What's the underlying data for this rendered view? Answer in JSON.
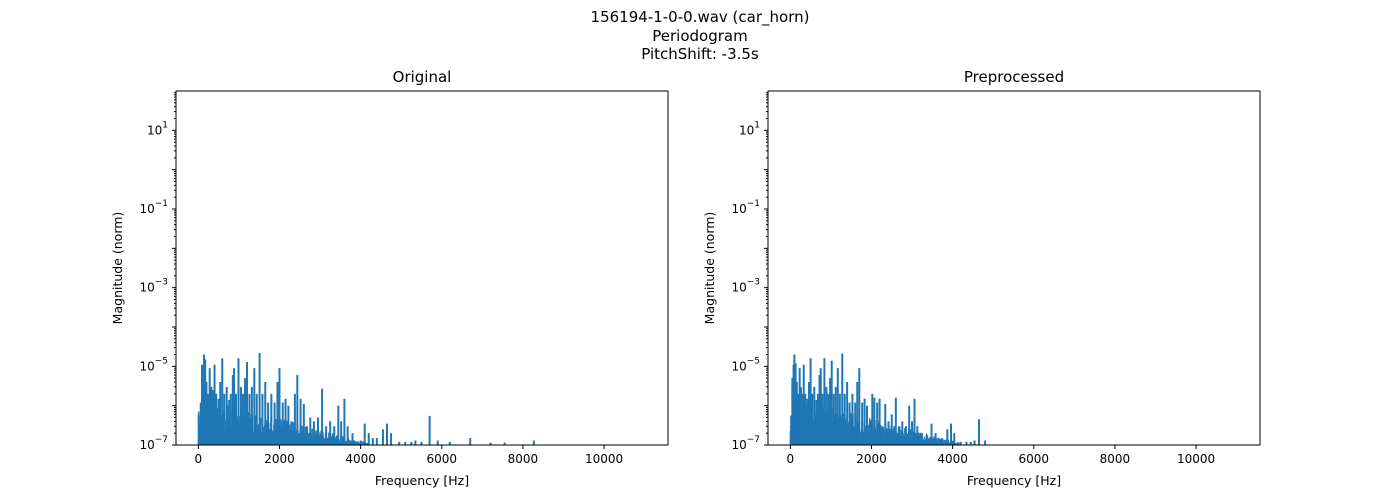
{
  "figure": {
    "title_lines": [
      "156194-1-0-0.wav (car_horn)",
      "Periodogram",
      "PitchShift: -3.5s"
    ],
    "series_color": "#1f77b4"
  },
  "chart_data": [
    {
      "type": "area",
      "title": "Original",
      "xlabel": "Frequency [Hz]",
      "ylabel": "Magnitude (norm)",
      "xlim": [
        -550,
        11575
      ],
      "ylim_exponents": [
        -7,
        2
      ],
      "yscale": "log",
      "xticks": [
        0,
        2000,
        4000,
        6000,
        8000,
        10000
      ],
      "xtick_labels": [
        "0",
        "2000",
        "4000",
        "6000",
        "8000",
        "10000"
      ],
      "yticks": [
        1e-07,
        1e-05,
        0.001,
        0.1,
        10
      ],
      "ytick_labels": [
        {
          "base": "10",
          "exp": "−7"
        },
        {
          "base": "10",
          "exp": "−5"
        },
        {
          "base": "10",
          "exp": "−3"
        },
        {
          "base": "10",
          "exp": "−1"
        },
        {
          "base": "10",
          "exp": "1"
        }
      ],
      "floor_level": 1e-07,
      "peaks": [
        {
          "x": 30,
          "y": 3e-07
        },
        {
          "x": 60,
          "y": 1.2e-06
        },
        {
          "x": 90,
          "y": 1.1e-05
        },
        {
          "x": 110,
          "y": 3e-06
        },
        {
          "x": 140,
          "y": 2e-05
        },
        {
          "x": 170,
          "y": 1.5e-05
        },
        {
          "x": 200,
          "y": 4e-06
        },
        {
          "x": 240,
          "y": 2e-06
        },
        {
          "x": 280,
          "y": 9e-06
        },
        {
          "x": 320,
          "y": 3e-06
        },
        {
          "x": 360,
          "y": 2.5e-06
        },
        {
          "x": 400,
          "y": 1.1e-05
        },
        {
          "x": 440,
          "y": 2e-06
        },
        {
          "x": 500,
          "y": 1.5e-06
        },
        {
          "x": 540,
          "y": 4e-06
        },
        {
          "x": 590,
          "y": 1.6e-05
        },
        {
          "x": 640,
          "y": 2e-06
        },
        {
          "x": 700,
          "y": 3e-06
        },
        {
          "x": 760,
          "y": 1.4e-06
        },
        {
          "x": 800,
          "y": 2e-06
        },
        {
          "x": 850,
          "y": 6e-06
        },
        {
          "x": 880,
          "y": 9e-06
        },
        {
          "x": 930,
          "y": 2e-06
        },
        {
          "x": 990,
          "y": 1.6e-05
        },
        {
          "x": 1050,
          "y": 3e-06
        },
        {
          "x": 1100,
          "y": 2e-06
        },
        {
          "x": 1150,
          "y": 5e-06
        },
        {
          "x": 1200,
          "y": 1.3e-05
        },
        {
          "x": 1260,
          "y": 2e-06
        },
        {
          "x": 1320,
          "y": 3e-06
        },
        {
          "x": 1380,
          "y": 9e-06
        },
        {
          "x": 1440,
          "y": 2e-06
        },
        {
          "x": 1510,
          "y": 2.2e-05
        },
        {
          "x": 1580,
          "y": 2e-06
        },
        {
          "x": 1650,
          "y": 4e-06
        },
        {
          "x": 1720,
          "y": 1.2e-06
        },
        {
          "x": 1800,
          "y": 2e-06
        },
        {
          "x": 1880,
          "y": 1.2e-06
        },
        {
          "x": 1950,
          "y": 4e-06
        },
        {
          "x": 2000,
          "y": 9e-06
        },
        {
          "x": 2080,
          "y": 1.2e-06
        },
        {
          "x": 2150,
          "y": 1.5e-06
        },
        {
          "x": 2220,
          "y": 1e-06
        },
        {
          "x": 2300,
          "y": 4e-07
        },
        {
          "x": 2380,
          "y": 2e-06
        },
        {
          "x": 2440,
          "y": 6e-06
        },
        {
          "x": 2520,
          "y": 1.5e-06
        },
        {
          "x": 2600,
          "y": 1.1e-06
        },
        {
          "x": 2680,
          "y": 3e-07
        },
        {
          "x": 2760,
          "y": 5e-07
        },
        {
          "x": 2850,
          "y": 4e-07
        },
        {
          "x": 2950,
          "y": 5e-07
        },
        {
          "x": 3050,
          "y": 2.7e-06
        },
        {
          "x": 3150,
          "y": 3e-07
        },
        {
          "x": 3250,
          "y": 4e-07
        },
        {
          "x": 3350,
          "y": 3e-07
        },
        {
          "x": 3450,
          "y": 1e-06
        },
        {
          "x": 3520,
          "y": 4e-07
        },
        {
          "x": 3600,
          "y": 1.5e-06
        },
        {
          "x": 3680,
          "y": 3e-07
        },
        {
          "x": 3800,
          "y": 2e-07
        },
        {
          "x": 4000,
          "y": 1.3e-07
        },
        {
          "x": 4100,
          "y": 3.5e-07
        },
        {
          "x": 4200,
          "y": 2e-07
        },
        {
          "x": 4300,
          "y": 1.5e-07
        },
        {
          "x": 4400,
          "y": 1.5e-07
        },
        {
          "x": 4550,
          "y": 2.5e-07
        },
        {
          "x": 4650,
          "y": 3.5e-07
        },
        {
          "x": 4750,
          "y": 2e-07
        },
        {
          "x": 4950,
          "y": 1.2e-07
        },
        {
          "x": 5100,
          "y": 1.2e-07
        },
        {
          "x": 5250,
          "y": 1.2e-07
        },
        {
          "x": 5350,
          "y": 1.3e-07
        },
        {
          "x": 5500,
          "y": 1.2e-07
        },
        {
          "x": 5700,
          "y": 5.5e-07
        },
        {
          "x": 5900,
          "y": 1.3e-07
        },
        {
          "x": 6200,
          "y": 1.2e-07
        },
        {
          "x": 6700,
          "y": 1.5e-07
        },
        {
          "x": 7200,
          "y": 1.15e-07
        },
        {
          "x": 7550,
          "y": 1.15e-07
        },
        {
          "x": 8270,
          "y": 1.3e-07
        }
      ]
    },
    {
      "type": "area",
      "title": "Preprocessed",
      "xlabel": "Frequency [Hz]",
      "ylabel": "Magnitude (norm)",
      "xlim": [
        -550,
        11575
      ],
      "ylim_exponents": [
        -7,
        2
      ],
      "yscale": "log",
      "xticks": [
        0,
        2000,
        4000,
        6000,
        8000,
        10000
      ],
      "xtick_labels": [
        "0",
        "2000",
        "4000",
        "6000",
        "8000",
        "10000"
      ],
      "yticks": [
        1e-07,
        1e-05,
        0.001,
        0.1,
        10
      ],
      "ytick_labels": [
        {
          "base": "10",
          "exp": "−7"
        },
        {
          "base": "10",
          "exp": "−5"
        },
        {
          "base": "10",
          "exp": "−3"
        },
        {
          "base": "10",
          "exp": "−1"
        },
        {
          "base": "10",
          "exp": "1"
        }
      ],
      "floor_level": 1e-07,
      "peaks": [
        {
          "x": 20,
          "y": 3e-07
        },
        {
          "x": 50,
          "y": 5e-06
        },
        {
          "x": 80,
          "y": 1.1e-05
        },
        {
          "x": 100,
          "y": 2e-05
        },
        {
          "x": 130,
          "y": 1.2e-05
        },
        {
          "x": 160,
          "y": 4e-06
        },
        {
          "x": 190,
          "y": 2e-06
        },
        {
          "x": 230,
          "y": 9e-06
        },
        {
          "x": 260,
          "y": 3e-06
        },
        {
          "x": 300,
          "y": 2e-06
        },
        {
          "x": 330,
          "y": 1.1e-05
        },
        {
          "x": 370,
          "y": 2e-06
        },
        {
          "x": 420,
          "y": 1.5e-06
        },
        {
          "x": 460,
          "y": 4e-06
        },
        {
          "x": 500,
          "y": 1.6e-05
        },
        {
          "x": 540,
          "y": 2e-06
        },
        {
          "x": 590,
          "y": 3e-06
        },
        {
          "x": 640,
          "y": 1.4e-06
        },
        {
          "x": 680,
          "y": 2e-06
        },
        {
          "x": 720,
          "y": 6e-06
        },
        {
          "x": 750,
          "y": 9e-06
        },
        {
          "x": 790,
          "y": 2e-06
        },
        {
          "x": 840,
          "y": 1.6e-05
        },
        {
          "x": 890,
          "y": 3e-06
        },
        {
          "x": 940,
          "y": 2e-06
        },
        {
          "x": 980,
          "y": 5e-06
        },
        {
          "x": 1020,
          "y": 1.4e-05
        },
        {
          "x": 1070,
          "y": 2e-06
        },
        {
          "x": 1120,
          "y": 3e-06
        },
        {
          "x": 1170,
          "y": 9e-06
        },
        {
          "x": 1220,
          "y": 2e-06
        },
        {
          "x": 1280,
          "y": 2.1e-05
        },
        {
          "x": 1340,
          "y": 2e-06
        },
        {
          "x": 1400,
          "y": 4e-06
        },
        {
          "x": 1460,
          "y": 1.2e-06
        },
        {
          "x": 1530,
          "y": 2e-06
        },
        {
          "x": 1600,
          "y": 1.2e-06
        },
        {
          "x": 1650,
          "y": 4e-06
        },
        {
          "x": 1700,
          "y": 9e-06
        },
        {
          "x": 1770,
          "y": 1.2e-06
        },
        {
          "x": 1830,
          "y": 1.5e-06
        },
        {
          "x": 1890,
          "y": 1e-06
        },
        {
          "x": 1960,
          "y": 4e-07
        },
        {
          "x": 2020,
          "y": 2e-06
        },
        {
          "x": 2070,
          "y": 1.6e-06
        },
        {
          "x": 2140,
          "y": 1.2e-06
        },
        {
          "x": 2200,
          "y": 1.5e-06
        },
        {
          "x": 2280,
          "y": 3e-07
        },
        {
          "x": 2340,
          "y": 1.1e-06
        },
        {
          "x": 2420,
          "y": 4e-07
        },
        {
          "x": 2500,
          "y": 6e-07
        },
        {
          "x": 2600,
          "y": 1.6e-06
        },
        {
          "x": 2680,
          "y": 3e-07
        },
        {
          "x": 2760,
          "y": 4e-07
        },
        {
          "x": 2850,
          "y": 3e-07
        },
        {
          "x": 2930,
          "y": 1e-06
        },
        {
          "x": 3000,
          "y": 4e-07
        },
        {
          "x": 3060,
          "y": 1.5e-06
        },
        {
          "x": 3130,
          "y": 3e-07
        },
        {
          "x": 3230,
          "y": 2e-07
        },
        {
          "x": 3400,
          "y": 1.3e-07
        },
        {
          "x": 3480,
          "y": 3.5e-07
        },
        {
          "x": 3580,
          "y": 2e-07
        },
        {
          "x": 3660,
          "y": 1.5e-07
        },
        {
          "x": 3740,
          "y": 1.5e-07
        },
        {
          "x": 3870,
          "y": 2.5e-07
        },
        {
          "x": 3960,
          "y": 3.5e-07
        },
        {
          "x": 4040,
          "y": 2e-07
        },
        {
          "x": 4200,
          "y": 1.2e-07
        },
        {
          "x": 4340,
          "y": 1.2e-07
        },
        {
          "x": 4450,
          "y": 1.2e-07
        },
        {
          "x": 4540,
          "y": 1.3e-07
        },
        {
          "x": 4650,
          "y": 4.5e-07
        },
        {
          "x": 4800,
          "y": 1.3e-07
        }
      ]
    }
  ]
}
